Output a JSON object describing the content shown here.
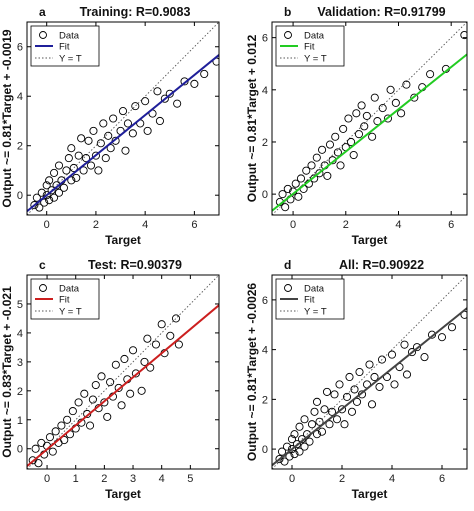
{
  "chart_data": [
    {
      "type": "scatter",
      "letter": "a",
      "title": "Training: R=0.9083",
      "xlabel": "Target",
      "ylabel": "Output ~= 0.81*Target + -0.0019",
      "xlim": [
        -0.8,
        7
      ],
      "ylim": [
        -0.8,
        7
      ],
      "xticks": [
        0,
        2,
        4,
        6
      ],
      "yticks": [
        0,
        2,
        4,
        6
      ],
      "grid": false,
      "legend_position": "top-left",
      "fit": {
        "slope": 0.81,
        "intercept": -0.0019,
        "color": "#1f1f9a"
      },
      "legend": [
        "Data",
        "Fit",
        "Y = T"
      ],
      "marker_color": "#000000",
      "data_points": [
        [
          -0.5,
          -0.4
        ],
        [
          -0.4,
          -0.1
        ],
        [
          -0.3,
          -0.5
        ],
        [
          -0.2,
          0.1
        ],
        [
          -0.1,
          -0.3
        ],
        [
          0,
          0
        ],
        [
          0,
          0.4
        ],
        [
          0.1,
          -0.2
        ],
        [
          0.1,
          0.6
        ],
        [
          0.2,
          0.2
        ],
        [
          0.3,
          -0.1
        ],
        [
          0.3,
          0.9
        ],
        [
          0.4,
          0.4
        ],
        [
          0.5,
          0.1
        ],
        [
          0.5,
          1.2
        ],
        [
          0.6,
          0.6
        ],
        [
          0.7,
          0.3
        ],
        [
          0.8,
          1.0
        ],
        [
          0.9,
          1.5
        ],
        [
          1.0,
          0.6
        ],
        [
          1.0,
          1.9
        ],
        [
          1.1,
          1.1
        ],
        [
          1.2,
          0.7
        ],
        [
          1.3,
          1.6
        ],
        [
          1.4,
          2.3
        ],
        [
          1.5,
          1.0
        ],
        [
          1.6,
          1.5
        ],
        [
          1.7,
          2.2
        ],
        [
          1.8,
          1.2
        ],
        [
          1.9,
          2.6
        ],
        [
          2.0,
          1.6
        ],
        [
          2.1,
          1.0
        ],
        [
          2.2,
          2.1
        ],
        [
          2.3,
          2.9
        ],
        [
          2.4,
          1.5
        ],
        [
          2.5,
          2.4
        ],
        [
          2.6,
          1.9
        ],
        [
          2.7,
          3.1
        ],
        [
          2.8,
          2.2
        ],
        [
          3.0,
          2.6
        ],
        [
          3.1,
          3.4
        ],
        [
          3.2,
          1.8
        ],
        [
          3.3,
          2.9
        ],
        [
          3.5,
          2.5
        ],
        [
          3.6,
          3.6
        ],
        [
          3.8,
          2.9
        ],
        [
          4.0,
          3.8
        ],
        [
          4.1,
          2.6
        ],
        [
          4.3,
          3.3
        ],
        [
          4.5,
          4.2
        ],
        [
          4.6,
          3.0
        ],
        [
          4.8,
          3.9
        ],
        [
          5.0,
          4.1
        ],
        [
          5.3,
          3.7
        ],
        [
          5.6,
          4.6
        ],
        [
          6.0,
          4.5
        ],
        [
          6.4,
          4.9
        ],
        [
          6.9,
          5.4
        ]
      ]
    },
    {
      "type": "scatter",
      "letter": "b",
      "title": "Validation: R=0.91799",
      "xlabel": "Target",
      "ylabel": "Output ~= 0.81*Target + 0.012",
      "xlim": [
        -0.8,
        6.6
      ],
      "ylim": [
        -0.8,
        6.6
      ],
      "xticks": [
        0,
        2,
        4,
        6
      ],
      "yticks": [
        0,
        2,
        4,
        6
      ],
      "grid": false,
      "legend_position": "top-left",
      "fit": {
        "slope": 0.81,
        "intercept": 0.012,
        "color": "#22cc22"
      },
      "legend": [
        "Data",
        "Fit",
        "Y = T"
      ],
      "marker_color": "#000000",
      "data_points": [
        [
          -0.5,
          -0.3
        ],
        [
          -0.4,
          0
        ],
        [
          -0.3,
          -0.5
        ],
        [
          -0.2,
          0.2
        ],
        [
          -0.1,
          -0.2
        ],
        [
          0,
          0.1
        ],
        [
          0.1,
          0.4
        ],
        [
          0.2,
          -0.1
        ],
        [
          0.3,
          0.6
        ],
        [
          0.4,
          0.2
        ],
        [
          0.5,
          0.9
        ],
        [
          0.6,
          0.4
        ],
        [
          0.7,
          1.1
        ],
        [
          0.8,
          0.6
        ],
        [
          0.9,
          1.4
        ],
        [
          1.0,
          0.8
        ],
        [
          1.1,
          1.7
        ],
        [
          1.2,
          1.1
        ],
        [
          1.3,
          0.7
        ],
        [
          1.4,
          1.9
        ],
        [
          1.5,
          1.3
        ],
        [
          1.6,
          2.2
        ],
        [
          1.7,
          1.6
        ],
        [
          1.8,
          1.1
        ],
        [
          1.9,
          2.5
        ],
        [
          2.0,
          1.8
        ],
        [
          2.1,
          2.9
        ],
        [
          2.2,
          2.0
        ],
        [
          2.3,
          1.5
        ],
        [
          2.4,
          3.1
        ],
        [
          2.5,
          2.3
        ],
        [
          2.6,
          3.4
        ],
        [
          2.7,
          2.6
        ],
        [
          2.8,
          3.0
        ],
        [
          3.0,
          2.2
        ],
        [
          3.1,
          3.7
        ],
        [
          3.2,
          2.8
        ],
        [
          3.4,
          3.3
        ],
        [
          3.6,
          2.9
        ],
        [
          3.7,
          4.0
        ],
        [
          3.9,
          3.5
        ],
        [
          4.1,
          3.1
        ],
        [
          4.3,
          4.2
        ],
        [
          4.6,
          3.7
        ],
        [
          4.9,
          4.1
        ],
        [
          5.2,
          4.6
        ],
        [
          5.8,
          4.8
        ],
        [
          6.5,
          6.1
        ]
      ]
    },
    {
      "type": "scatter",
      "letter": "c",
      "title": "Test: R=0.90379",
      "xlabel": "Target",
      "ylabel": "Output ~= 0.83*Target + -0.021",
      "xlim": [
        -0.7,
        6
      ],
      "ylim": [
        -0.7,
        6
      ],
      "xticks": [
        0,
        1,
        2,
        3,
        4,
        5
      ],
      "yticks": [
        0,
        1,
        2,
        3,
        4,
        5
      ],
      "grid": false,
      "legend_position": "top-left",
      "fit": {
        "slope": 0.83,
        "intercept": -0.021,
        "color": "#cc1f1f"
      },
      "legend": [
        "Data",
        "Fit",
        "Y = T"
      ],
      "marker_color": "#000000",
      "data_points": [
        [
          -0.5,
          -0.4
        ],
        [
          -0.4,
          0
        ],
        [
          -0.3,
          -0.5
        ],
        [
          -0.2,
          0.2
        ],
        [
          -0.1,
          -0.2
        ],
        [
          0,
          0.1
        ],
        [
          0.1,
          0.4
        ],
        [
          0.2,
          -0.1
        ],
        [
          0.3,
          0.6
        ],
        [
          0.4,
          0.2
        ],
        [
          0.5,
          0.8
        ],
        [
          0.6,
          0.3
        ],
        [
          0.7,
          1.0
        ],
        [
          0.8,
          0.5
        ],
        [
          0.9,
          1.3
        ],
        [
          1.0,
          0.7
        ],
        [
          1.1,
          1.6
        ],
        [
          1.2,
          0.9
        ],
        [
          1.3,
          1.9
        ],
        [
          1.4,
          1.2
        ],
        [
          1.5,
          0.8
        ],
        [
          1.6,
          1.7
        ],
        [
          1.7,
          2.2
        ],
        [
          1.8,
          1.4
        ],
        [
          1.9,
          2.5
        ],
        [
          2.0,
          1.6
        ],
        [
          2.1,
          1.1
        ],
        [
          2.2,
          2.3
        ],
        [
          2.3,
          1.8
        ],
        [
          2.4,
          2.9
        ],
        [
          2.5,
          2.1
        ],
        [
          2.6,
          1.5
        ],
        [
          2.7,
          3.1
        ],
        [
          2.8,
          2.4
        ],
        [
          2.9,
          1.9
        ],
        [
          3.0,
          3.4
        ],
        [
          3.1,
          2.6
        ],
        [
          3.3,
          2.0
        ],
        [
          3.4,
          3.0
        ],
        [
          3.5,
          3.8
        ],
        [
          3.6,
          2.8
        ],
        [
          3.8,
          3.6
        ],
        [
          4.0,
          4.3
        ],
        [
          4.1,
          3.3
        ],
        [
          4.3,
          3.9
        ],
        [
          4.5,
          4.5
        ],
        [
          4.6,
          3.6
        ]
      ]
    },
    {
      "type": "scatter",
      "letter": "d",
      "title": "All: R=0.90922",
      "xlabel": "Target",
      "ylabel": "Output ~= 0.81*Target + -0.0026",
      "xlim": [
        -0.8,
        7
      ],
      "ylim": [
        -0.8,
        7
      ],
      "xticks": [
        0,
        2,
        4,
        6
      ],
      "yticks": [
        0,
        2,
        4,
        6
      ],
      "grid": false,
      "legend_position": "top-left",
      "fit": {
        "slope": 0.81,
        "intercept": -0.0026,
        "color": "#444444"
      },
      "legend": [
        "Data",
        "Fit",
        "Y = T"
      ],
      "marker_color": "#000000",
      "data_points": [
        [
          -0.5,
          -0.4
        ],
        [
          -0.4,
          -0.1
        ],
        [
          -0.3,
          -0.5
        ],
        [
          -0.2,
          0.1
        ],
        [
          -0.1,
          -0.3
        ],
        [
          0,
          0
        ],
        [
          0,
          0.4
        ],
        [
          0.1,
          -0.2
        ],
        [
          0.1,
          0.6
        ],
        [
          0.2,
          0.2
        ],
        [
          0.3,
          -0.1
        ],
        [
          0.3,
          0.9
        ],
        [
          0.4,
          0.4
        ],
        [
          0.5,
          0.1
        ],
        [
          0.5,
          1.2
        ],
        [
          0.6,
          0.6
        ],
        [
          0.7,
          0.3
        ],
        [
          0.8,
          1.0
        ],
        [
          0.9,
          1.5
        ],
        [
          1.0,
          0.6
        ],
        [
          1.0,
          1.9
        ],
        [
          1.1,
          1.1
        ],
        [
          1.2,
          0.7
        ],
        [
          1.3,
          1.6
        ],
        [
          1.4,
          2.3
        ],
        [
          1.5,
          1.0
        ],
        [
          1.6,
          1.5
        ],
        [
          1.7,
          2.2
        ],
        [
          1.8,
          1.2
        ],
        [
          1.9,
          2.6
        ],
        [
          2.0,
          1.6
        ],
        [
          2.1,
          1.0
        ],
        [
          2.2,
          2.1
        ],
        [
          2.3,
          2.9
        ],
        [
          2.4,
          1.5
        ],
        [
          2.5,
          2.4
        ],
        [
          2.6,
          1.9
        ],
        [
          2.7,
          3.1
        ],
        [
          2.8,
          2.2
        ],
        [
          3.0,
          2.6
        ],
        [
          3.1,
          3.4
        ],
        [
          3.2,
          1.8
        ],
        [
          3.3,
          2.9
        ],
        [
          3.5,
          2.5
        ],
        [
          3.6,
          3.6
        ],
        [
          3.8,
          2.9
        ],
        [
          4.0,
          3.8
        ],
        [
          4.1,
          2.6
        ],
        [
          4.3,
          3.3
        ],
        [
          4.5,
          4.2
        ],
        [
          4.6,
          3.0
        ],
        [
          4.8,
          3.9
        ],
        [
          5.0,
          4.1
        ],
        [
          5.3,
          3.7
        ],
        [
          5.6,
          4.6
        ],
        [
          6.0,
          4.5
        ],
        [
          6.4,
          4.9
        ],
        [
          6.9,
          5.4
        ]
      ]
    }
  ]
}
